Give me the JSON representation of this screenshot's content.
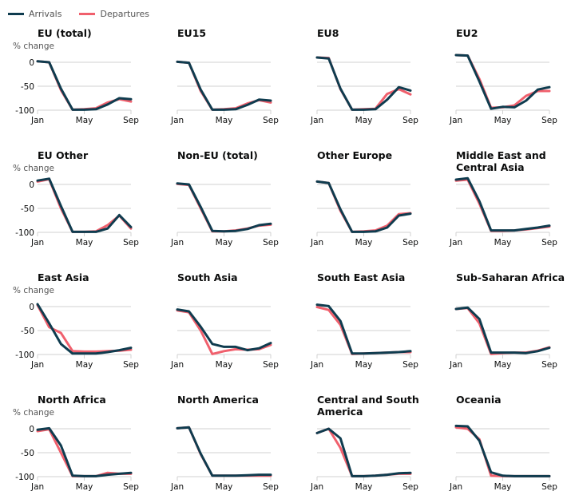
{
  "legend": {
    "items": [
      {
        "label": "Arrivals",
        "color": "#0f3c4f"
      },
      {
        "label": "Departures",
        "color": "#f0606d"
      }
    ]
  },
  "colors": {
    "arrivals": "#0f3c4f",
    "departures": "#f0606d",
    "grid": "#d0d0d0"
  },
  "chart_data": {
    "type": "line",
    "layout": "small-multiples 4x4",
    "x": [
      "Jan",
      "Feb",
      "Mar",
      "Apr",
      "May",
      "Jun",
      "Jul",
      "Aug",
      "Sep"
    ],
    "x_tick_labels": [
      "Jan",
      "May",
      "Sep"
    ],
    "ylabel": "% change",
    "y_tick_labels": [
      "0",
      "-50",
      "-100"
    ],
    "ylim": [
      -100,
      0
    ],
    "grid": true,
    "legend_position": "top-left",
    "panels": [
      {
        "title": "EU (total)",
        "show_y_axis": true,
        "series": [
          {
            "name": "Arrivals",
            "values": [
              2,
              0,
              -55,
              -99,
              -99,
              -98,
              -88,
              -75,
              -77
            ]
          },
          {
            "name": "Departures",
            "values": [
              2,
              0,
              -58,
              -99,
              -98,
              -96,
              -84,
              -77,
              -82
            ]
          }
        ]
      },
      {
        "title": "EU15",
        "show_y_axis": false,
        "series": [
          {
            "name": "Arrivals",
            "values": [
              1,
              -1,
              -57,
              -99,
              -99,
              -98,
              -89,
              -78,
              -80
            ]
          },
          {
            "name": "Departures",
            "values": [
              1,
              -1,
              -60,
              -99,
              -98,
              -96,
              -86,
              -79,
              -84
            ]
          }
        ]
      },
      {
        "title": "EU8",
        "show_y_axis": false,
        "series": [
          {
            "name": "Arrivals",
            "values": [
              10,
              8,
              -55,
              -99,
              -99,
              -98,
              -78,
              -52,
              -59
            ]
          },
          {
            "name": "Departures",
            "values": [
              10,
              9,
              -56,
              -99,
              -98,
              -97,
              -66,
              -56,
              -67
            ]
          }
        ]
      },
      {
        "title": "EU2",
        "show_y_axis": false,
        "series": [
          {
            "name": "Arrivals",
            "values": [
              15,
              14,
              -40,
              -97,
              -93,
              -94,
              -80,
              -57,
              -52
            ]
          },
          {
            "name": "Departures",
            "values": [
              15,
              14,
              -35,
              -95,
              -94,
              -90,
              -70,
              -60,
              -60
            ]
          }
        ]
      },
      {
        "title": "EU Other",
        "show_y_axis": true,
        "series": [
          {
            "name": "Arrivals",
            "values": [
              8,
              12,
              -45,
              -99,
              -99,
              -99,
              -92,
              -64,
              -89
            ]
          },
          {
            "name": "Departures",
            "values": [
              6,
              11,
              -50,
              -99,
              -99,
              -98,
              -85,
              -65,
              -92
            ]
          }
        ]
      },
      {
        "title": "Non-EU (total)",
        "show_y_axis": false,
        "series": [
          {
            "name": "Arrivals",
            "values": [
              2,
              0,
              -47,
              -97,
              -98,
              -97,
              -93,
              -85,
              -82
            ]
          },
          {
            "name": "Departures",
            "values": [
              1,
              -1,
              -50,
              -98,
              -98,
              -96,
              -92,
              -86,
              -84
            ]
          }
        ]
      },
      {
        "title": "Other Europe",
        "show_y_axis": false,
        "series": [
          {
            "name": "Arrivals",
            "values": [
              6,
              3,
              -52,
              -99,
              -99,
              -98,
              -90,
              -65,
              -61
            ]
          },
          {
            "name": "Departures",
            "values": [
              6,
              3,
              -55,
              -99,
              -98,
              -96,
              -86,
              -62,
              -60
            ]
          }
        ]
      },
      {
        "title": "Middle East and Central Asia",
        "show_y_axis": false,
        "series": [
          {
            "name": "Arrivals",
            "values": [
              10,
              13,
              -35,
              -96,
              -96,
              -96,
              -93,
              -90,
              -86
            ]
          },
          {
            "name": "Departures",
            "values": [
              8,
              10,
              -40,
              -97,
              -97,
              -96,
              -94,
              -91,
              -88
            ]
          }
        ]
      },
      {
        "title": "East Asia",
        "show_y_axis": true,
        "series": [
          {
            "name": "Arrivals",
            "values": [
              5,
              -35,
              -78,
              -98,
              -98,
              -98,
              -95,
              -91,
              -86
            ]
          },
          {
            "name": "Departures",
            "values": [
              3,
              -43,
              -55,
              -93,
              -94,
              -94,
              -93,
              -92,
              -90
            ]
          }
        ]
      },
      {
        "title": "South Asia",
        "show_y_axis": false,
        "series": [
          {
            "name": "Arrivals",
            "values": [
              -6,
              -10,
              -42,
              -78,
              -84,
              -84,
              -91,
              -87,
              -76
            ]
          },
          {
            "name": "Departures",
            "values": [
              -8,
              -12,
              -50,
              -99,
              -93,
              -89,
              -90,
              -89,
              -80
            ]
          }
        ]
      },
      {
        "title": "South East Asia",
        "show_y_axis": false,
        "series": [
          {
            "name": "Arrivals",
            "values": [
              4,
              1,
              -30,
              -98,
              -98,
              -97,
              -96,
              -95,
              -93
            ]
          },
          {
            "name": "Departures",
            "values": [
              -1,
              -7,
              -38,
              -99,
              -98,
              -97,
              -96,
              -95,
              -95
            ]
          }
        ]
      },
      {
        "title": "Sub-Saharan Africa",
        "show_y_axis": false,
        "series": [
          {
            "name": "Arrivals",
            "values": [
              -5,
              -2,
              -26,
              -96,
              -96,
              -96,
              -97,
              -93,
              -86
            ]
          },
          {
            "name": "Departures",
            "values": [
              -5,
              -3,
              -35,
              -99,
              -97,
              -96,
              -96,
              -92,
              -85
            ]
          }
        ]
      },
      {
        "title": "North Africa",
        "show_y_axis": true,
        "series": [
          {
            "name": "Arrivals",
            "values": [
              -2,
              1,
              -35,
              -98,
              -99,
              -99,
              -96,
              -94,
              -92
            ]
          },
          {
            "name": "Departures",
            "values": [
              -5,
              -1,
              -50,
              -99,
              -99,
              -99,
              -92,
              -94,
              -94
            ]
          }
        ]
      },
      {
        "title": "North America",
        "show_y_axis": false,
        "series": [
          {
            "name": "Arrivals",
            "values": [
              1,
              3,
              -52,
              -98,
              -98,
              -98,
              -97,
              -96,
              -96
            ]
          },
          {
            "name": "Departures",
            "values": [
              1,
              3,
              -53,
              -98,
              -98,
              -98,
              -98,
              -98,
              -98
            ]
          }
        ]
      },
      {
        "title": "Central and South America",
        "show_y_axis": false,
        "series": [
          {
            "name": "Arrivals",
            "values": [
              -9,
              0,
              -20,
              -99,
              -99,
              -98,
              -96,
              -93,
              -92
            ]
          },
          {
            "name": "Departures",
            "values": [
              -9,
              0,
              -40,
              -99,
              -99,
              -98,
              -96,
              -94,
              -94
            ]
          }
        ]
      },
      {
        "title": "Oceania",
        "show_y_axis": false,
        "series": [
          {
            "name": "Arrivals",
            "values": [
              6,
              5,
              -25,
              -91,
              -98,
              -99,
              -99,
              -99,
              -99
            ]
          },
          {
            "name": "Departures",
            "values": [
              3,
              0,
              -22,
              -98,
              -99,
              -99,
              -99,
              -99,
              -99
            ]
          }
        ]
      }
    ]
  }
}
